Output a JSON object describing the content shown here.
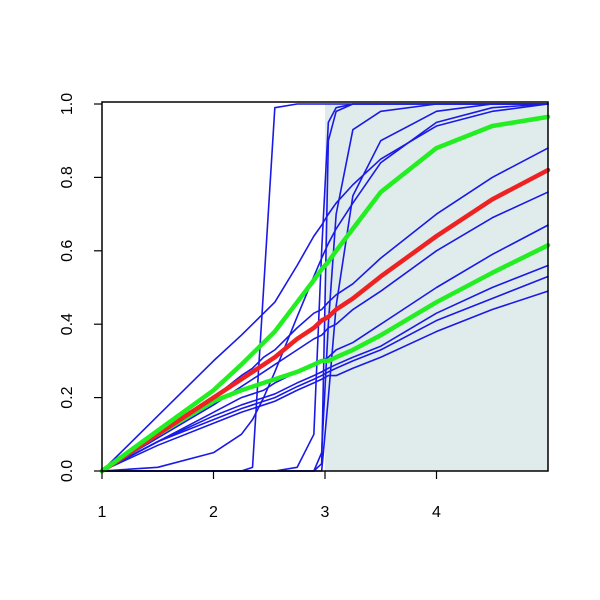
{
  "chart_data": {
    "type": "line",
    "x": [
      1,
      1.5,
      2,
      2.25,
      2.35,
      2.45,
      2.55,
      2.75,
      2.9,
      2.97,
      3.03,
      3.1,
      3.25,
      3.5,
      4,
      4.5,
      5
    ],
    "xlim": [
      1,
      5
    ],
    "xticks": [
      1,
      2,
      3,
      4
    ],
    "ylim": [
      0,
      1
    ],
    "yticks": [
      {
        "value": 0,
        "label": "0.0"
      },
      {
        "value": 0.2,
        "label": "0.2"
      },
      {
        "value": 0.4,
        "label": "0.4"
      },
      {
        "value": 0.6,
        "label": "0.6"
      },
      {
        "value": 0.8,
        "label": "0.8"
      },
      {
        "value": 1,
        "label": "1.0"
      }
    ],
    "shade": {
      "xmin": 3,
      "xmax": 5,
      "color": "#e0ebeb"
    },
    "series": [
      {
        "color": "#1a1ae6",
        "values": [
          0,
          0.15,
          0.3,
          0.37,
          0.4,
          0.43,
          0.46,
          0.56,
          0.64,
          0.67,
          0.7,
          0.73,
          0.78,
          0.85,
          0.94,
          0.98,
          1.0
        ]
      },
      {
        "color": "#1a1ae6",
        "values": [
          0,
          0.01,
          0.05,
          0.1,
          0.14,
          0.2,
          0.27,
          0.42,
          0.53,
          0.58,
          0.62,
          0.66,
          0.73,
          0.84,
          0.95,
          0.99,
          1.0
        ]
      },
      {
        "color": "#1a1ae6",
        "values": [
          0,
          0.1,
          0.2,
          0.26,
          0.28,
          0.31,
          0.33,
          0.39,
          0.43,
          0.44,
          0.46,
          0.48,
          0.51,
          0.58,
          0.7,
          0.8,
          0.88
        ]
      },
      {
        "color": "#1a1ae6",
        "values": [
          0,
          0.09,
          0.18,
          0.23,
          0.25,
          0.27,
          0.29,
          0.33,
          0.36,
          0.37,
          0.39,
          0.4,
          0.44,
          0.49,
          0.6,
          0.69,
          0.76
        ]
      },
      {
        "color": "#1a1ae6",
        "values": [
          0,
          0.08,
          0.16,
          0.2,
          0.21,
          0.22,
          0.24,
          0.27,
          0.29,
          0.3,
          0.31,
          0.33,
          0.35,
          0.4,
          0.5,
          0.59,
          0.67
        ]
      },
      {
        "color": "#1a1ae6",
        "values": [
          0,
          0.08,
          0.15,
          0.18,
          0.19,
          0.2,
          0.21,
          0.24,
          0.26,
          0.27,
          0.28,
          0.29,
          0.31,
          0.34,
          0.43,
          0.5,
          0.56
        ]
      },
      {
        "color": "#1a1ae6",
        "values": [
          0,
          0.08,
          0.14,
          0.17,
          0.18,
          0.19,
          0.2,
          0.23,
          0.25,
          0.26,
          0.27,
          0.28,
          0.3,
          0.33,
          0.41,
          0.47,
          0.53
        ]
      },
      {
        "color": "#1a1ae6",
        "values": [
          0,
          0.07,
          0.13,
          0.16,
          0.17,
          0.18,
          0.19,
          0.22,
          0.24,
          0.25,
          0.26,
          0.26,
          0.28,
          0.31,
          0.38,
          0.44,
          0.49
        ]
      },
      {
        "color": "#1a1ae6",
        "values": [
          0,
          0,
          0,
          0,
          0.01,
          0.5,
          0.99,
          1,
          1,
          1,
          1,
          1,
          1,
          1,
          1,
          1,
          1
        ]
      },
      {
        "color": "#1a1ae6",
        "values": [
          0,
          0,
          0,
          0,
          0,
          0,
          0,
          0.01,
          0.1,
          0.6,
          0.95,
          0.99,
          1,
          1,
          1,
          1,
          1
        ]
      },
      {
        "color": "#1a1ae6",
        "values": [
          0,
          0,
          0,
          0,
          0,
          0,
          0,
          0,
          0,
          0.02,
          0.9,
          0.98,
          1,
          1,
          1,
          1,
          1
        ]
      },
      {
        "color": "#1a1ae6",
        "values": [
          0,
          0,
          0,
          0,
          0,
          0,
          0,
          0,
          0,
          0.05,
          0.4,
          0.7,
          0.93,
          0.98,
          1,
          1,
          1
        ]
      },
      {
        "color": "#1a1ae6",
        "values": [
          0,
          0,
          0,
          0,
          0,
          0,
          0,
          0,
          0,
          0,
          0.2,
          0.45,
          0.75,
          0.9,
          0.98,
          1,
          1
        ]
      },
      {
        "color": "#22ee22",
        "values": [
          0,
          0.1,
          0.19,
          0.22,
          0.23,
          0.24,
          0.25,
          0.27,
          0.29,
          0.3,
          0.3,
          0.31,
          0.33,
          0.37,
          0.46,
          0.54,
          0.615
        ]
      },
      {
        "color": "#ee2222",
        "values": [
          0,
          0.1,
          0.2,
          0.25,
          0.27,
          0.29,
          0.31,
          0.36,
          0.39,
          0.41,
          0.42,
          0.44,
          0.47,
          0.53,
          0.64,
          0.74,
          0.82
        ]
      },
      {
        "color": "#22ee22",
        "values": [
          0,
          0.11,
          0.22,
          0.29,
          0.32,
          0.35,
          0.38,
          0.46,
          0.52,
          0.55,
          0.57,
          0.6,
          0.66,
          0.76,
          0.88,
          0.94,
          0.965
        ]
      }
    ]
  }
}
